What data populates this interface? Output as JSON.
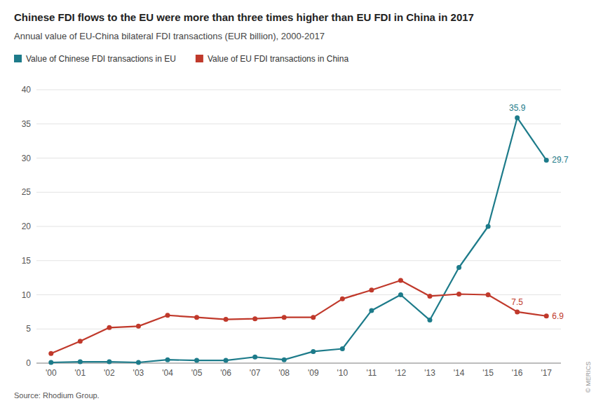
{
  "chart_data": {
    "type": "line",
    "title": "Chinese FDI flows to the EU were more than three times higher than EU FDI in China in 2017",
    "subtitle": "Annual value of EU-China bilateral FDI transactions (EUR billion), 2000-2017",
    "source": "Source: Rhodium Group.",
    "credit": "© MERICS",
    "categories": [
      "'00",
      "'01",
      "'02",
      "'03",
      "'04",
      "'05",
      "'06",
      "'07",
      "'08",
      "'09",
      "'10",
      "'11",
      "'12",
      "'13",
      "'14",
      "'15",
      "'16",
      "'17"
    ],
    "series": [
      {
        "name": "Value of Chinese FDI transactions in EU",
        "color": "#1d7b8a",
        "marker": "circle",
        "values": [
          0.1,
          0.2,
          0.2,
          0.1,
          0.5,
          0.4,
          0.4,
          0.9,
          0.5,
          1.7,
          2.1,
          7.7,
          10.0,
          6.3,
          14.0,
          20.0,
          35.9,
          29.7
        ]
      },
      {
        "name": "Value of EU FDI transactions in China",
        "color": "#c0392b",
        "marker": "circle",
        "values": [
          1.4,
          3.2,
          5.2,
          5.4,
          7.0,
          6.7,
          6.4,
          6.5,
          6.7,
          6.7,
          9.4,
          10.7,
          12.1,
          9.8,
          10.1,
          10.0,
          7.5,
          6.9
        ]
      }
    ],
    "annotations": [
      {
        "text": "35.9",
        "x": "'16",
        "y": 35.9,
        "color": "#1d7b8a"
      },
      {
        "text": "29.7",
        "x": "'17",
        "y": 29.7,
        "color": "#1d7b8a"
      },
      {
        "text": "7.5",
        "x": "'16",
        "y": 7.5,
        "color": "#c0392b"
      },
      {
        "text": "6.9",
        "x": "'17",
        "y": 6.9,
        "color": "#c0392b"
      }
    ],
    "ylim": [
      0,
      40
    ],
    "yticks": [
      0,
      5,
      10,
      15,
      20,
      25,
      30,
      35,
      40
    ],
    "grid": true,
    "legend": "top"
  }
}
